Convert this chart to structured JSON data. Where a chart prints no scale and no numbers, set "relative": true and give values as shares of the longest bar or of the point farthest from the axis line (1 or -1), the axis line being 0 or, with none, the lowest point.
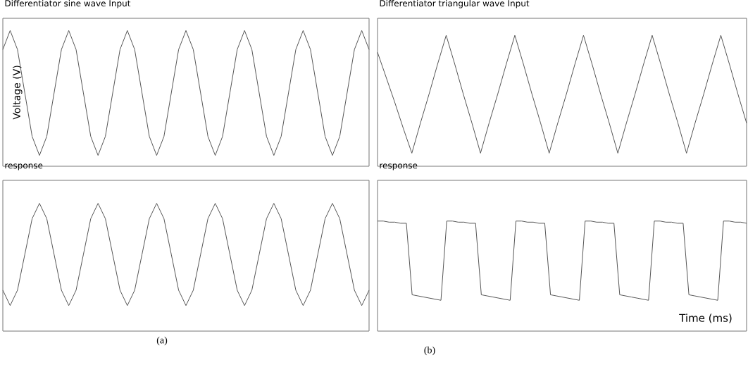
{
  "chart_data": [
    {
      "type": "line",
      "title": "Differentiator sine wave Input",
      "ylabel": "Voltage (V)",
      "relative": true,
      "categories": [
        null,
        null,
        null,
        null,
        null,
        null,
        null,
        null,
        null,
        null,
        null,
        null,
        null,
        null,
        null,
        null,
        null,
        null,
        null,
        null,
        null,
        null,
        null,
        null,
        null,
        null,
        null,
        null,
        null,
        null,
        null,
        null,
        null,
        null,
        null,
        null,
        null,
        null,
        null,
        null,
        null,
        null,
        null,
        null,
        null,
        null,
        null,
        null,
        null,
        null,
        null
      ],
      "series": [
        {
          "color": "#555555",
          "values": [
            0.86,
            1,
            0.86,
            0.54,
            0.22,
            0.08,
            0.22,
            0.54,
            0.86,
            1,
            0.86,
            0.54,
            0.22,
            0.08,
            0.22,
            0.54,
            0.86,
            1,
            0.86,
            0.54,
            0.22,
            0.08,
            0.22,
            0.54,
            0.86,
            1,
            0.86,
            0.54,
            0.22,
            0.08,
            0.22,
            0.54,
            0.86,
            1,
            0.86,
            0.54,
            0.22,
            0.08,
            0.22,
            0.54,
            0.86,
            1,
            0.86,
            0.54,
            0.22,
            0.08,
            0.22,
            0.54,
            0.86,
            1,
            0.86
          ]
        }
      ]
    },
    {
      "type": "line",
      "title": "response",
      "annotations": [
        "(a)"
      ],
      "relative": true,
      "categories": [
        null,
        null,
        null,
        null,
        null,
        null,
        null,
        null,
        null,
        null,
        null,
        null,
        null,
        null,
        null,
        null,
        null,
        null,
        null,
        null,
        null,
        null,
        null,
        null,
        null,
        null,
        null,
        null,
        null,
        null,
        null,
        null,
        null,
        null,
        null,
        null,
        null,
        null,
        null,
        null,
        null,
        null,
        null,
        null,
        null,
        null,
        null,
        null,
        null,
        null,
        null
      ],
      "series": [
        {
          "color": "#555555",
          "values": [
            0.32,
            0.2,
            0.32,
            0.6,
            0.88,
            1,
            0.88,
            0.6,
            0.32,
            0.2,
            0.32,
            0.6,
            0.88,
            1,
            0.88,
            0.6,
            0.32,
            0.2,
            0.32,
            0.6,
            0.88,
            1,
            0.88,
            0.6,
            0.32,
            0.2,
            0.32,
            0.6,
            0.88,
            1,
            0.88,
            0.6,
            0.32,
            0.2,
            0.32,
            0.6,
            0.88,
            1,
            0.88,
            0.6,
            0.32,
            0.2,
            0.32,
            0.6,
            0.88,
            1,
            0.88,
            0.6,
            0.32,
            0.2,
            0.32
          ]
        }
      ]
    },
    {
      "type": "line",
      "title": "Differentiator triangular wave Input",
      "relative": true,
      "categories": [
        null,
        null,
        null,
        null,
        null,
        null,
        null,
        null,
        null,
        null,
        null,
        null,
        null,
        null,
        null,
        null,
        null,
        null,
        null,
        null,
        null,
        null,
        null,
        null,
        null,
        null,
        null,
        null,
        null,
        null,
        null,
        null,
        null,
        null,
        null,
        null,
        null,
        null,
        null,
        null,
        null,
        null,
        null,
        null
      ],
      "series": [
        {
          "color": "#555555",
          "values": [
            0.87,
            0.68,
            0.49,
            0.29,
            0.1,
            0.33,
            0.55,
            0.78,
            1,
            0.78,
            0.55,
            0.33,
            0.1,
            0.33,
            0.55,
            0.78,
            1,
            0.78,
            0.55,
            0.33,
            0.1,
            0.33,
            0.55,
            0.78,
            1,
            0.78,
            0.55,
            0.33,
            0.1,
            0.33,
            0.55,
            0.78,
            1,
            0.78,
            0.55,
            0.33,
            0.1,
            0.33,
            0.55,
            0.78,
            1,
            0.78,
            0.55,
            0.33
          ]
        }
      ]
    },
    {
      "type": "line",
      "title": "response",
      "xlabel": "Time (ms)",
      "annotations": [
        "(b)"
      ],
      "relative": true,
      "categories": [
        null,
        null,
        null,
        null,
        null,
        null,
        null,
        null,
        null,
        null,
        null,
        null,
        null,
        null,
        null,
        null,
        null,
        null,
        null,
        null,
        null,
        null,
        null,
        null,
        null,
        null,
        null,
        null,
        null,
        null,
        null,
        null,
        null,
        null,
        null,
        null,
        null,
        null,
        null,
        null,
        null,
        null,
        null,
        null,
        null,
        null,
        null,
        null,
        null,
        null,
        null,
        null,
        null,
        null,
        null,
        null,
        null,
        null,
        null,
        null,
        null,
        null,
        null,
        null,
        null
      ],
      "series": [
        {
          "color": "#555555",
          "values": [
            1,
            1,
            0.99,
            0.99,
            0.98,
            0.98,
            0.33,
            0.32,
            0.31,
            0.3,
            0.29,
            0.28,
            1,
            1,
            0.99,
            0.99,
            0.98,
            0.98,
            0.33,
            0.32,
            0.31,
            0.3,
            0.29,
            0.28,
            1,
            1,
            0.99,
            0.99,
            0.98,
            0.98,
            0.33,
            0.32,
            0.31,
            0.3,
            0.29,
            0.28,
            1,
            1,
            0.99,
            0.99,
            0.98,
            0.98,
            0.33,
            0.32,
            0.31,
            0.3,
            0.29,
            0.28,
            1,
            1,
            0.99,
            0.99,
            0.98,
            0.98,
            0.33,
            0.32,
            0.31,
            0.3,
            0.29,
            0.28,
            1,
            1,
            0.99,
            0.99,
            0.98
          ]
        }
      ]
    }
  ]
}
